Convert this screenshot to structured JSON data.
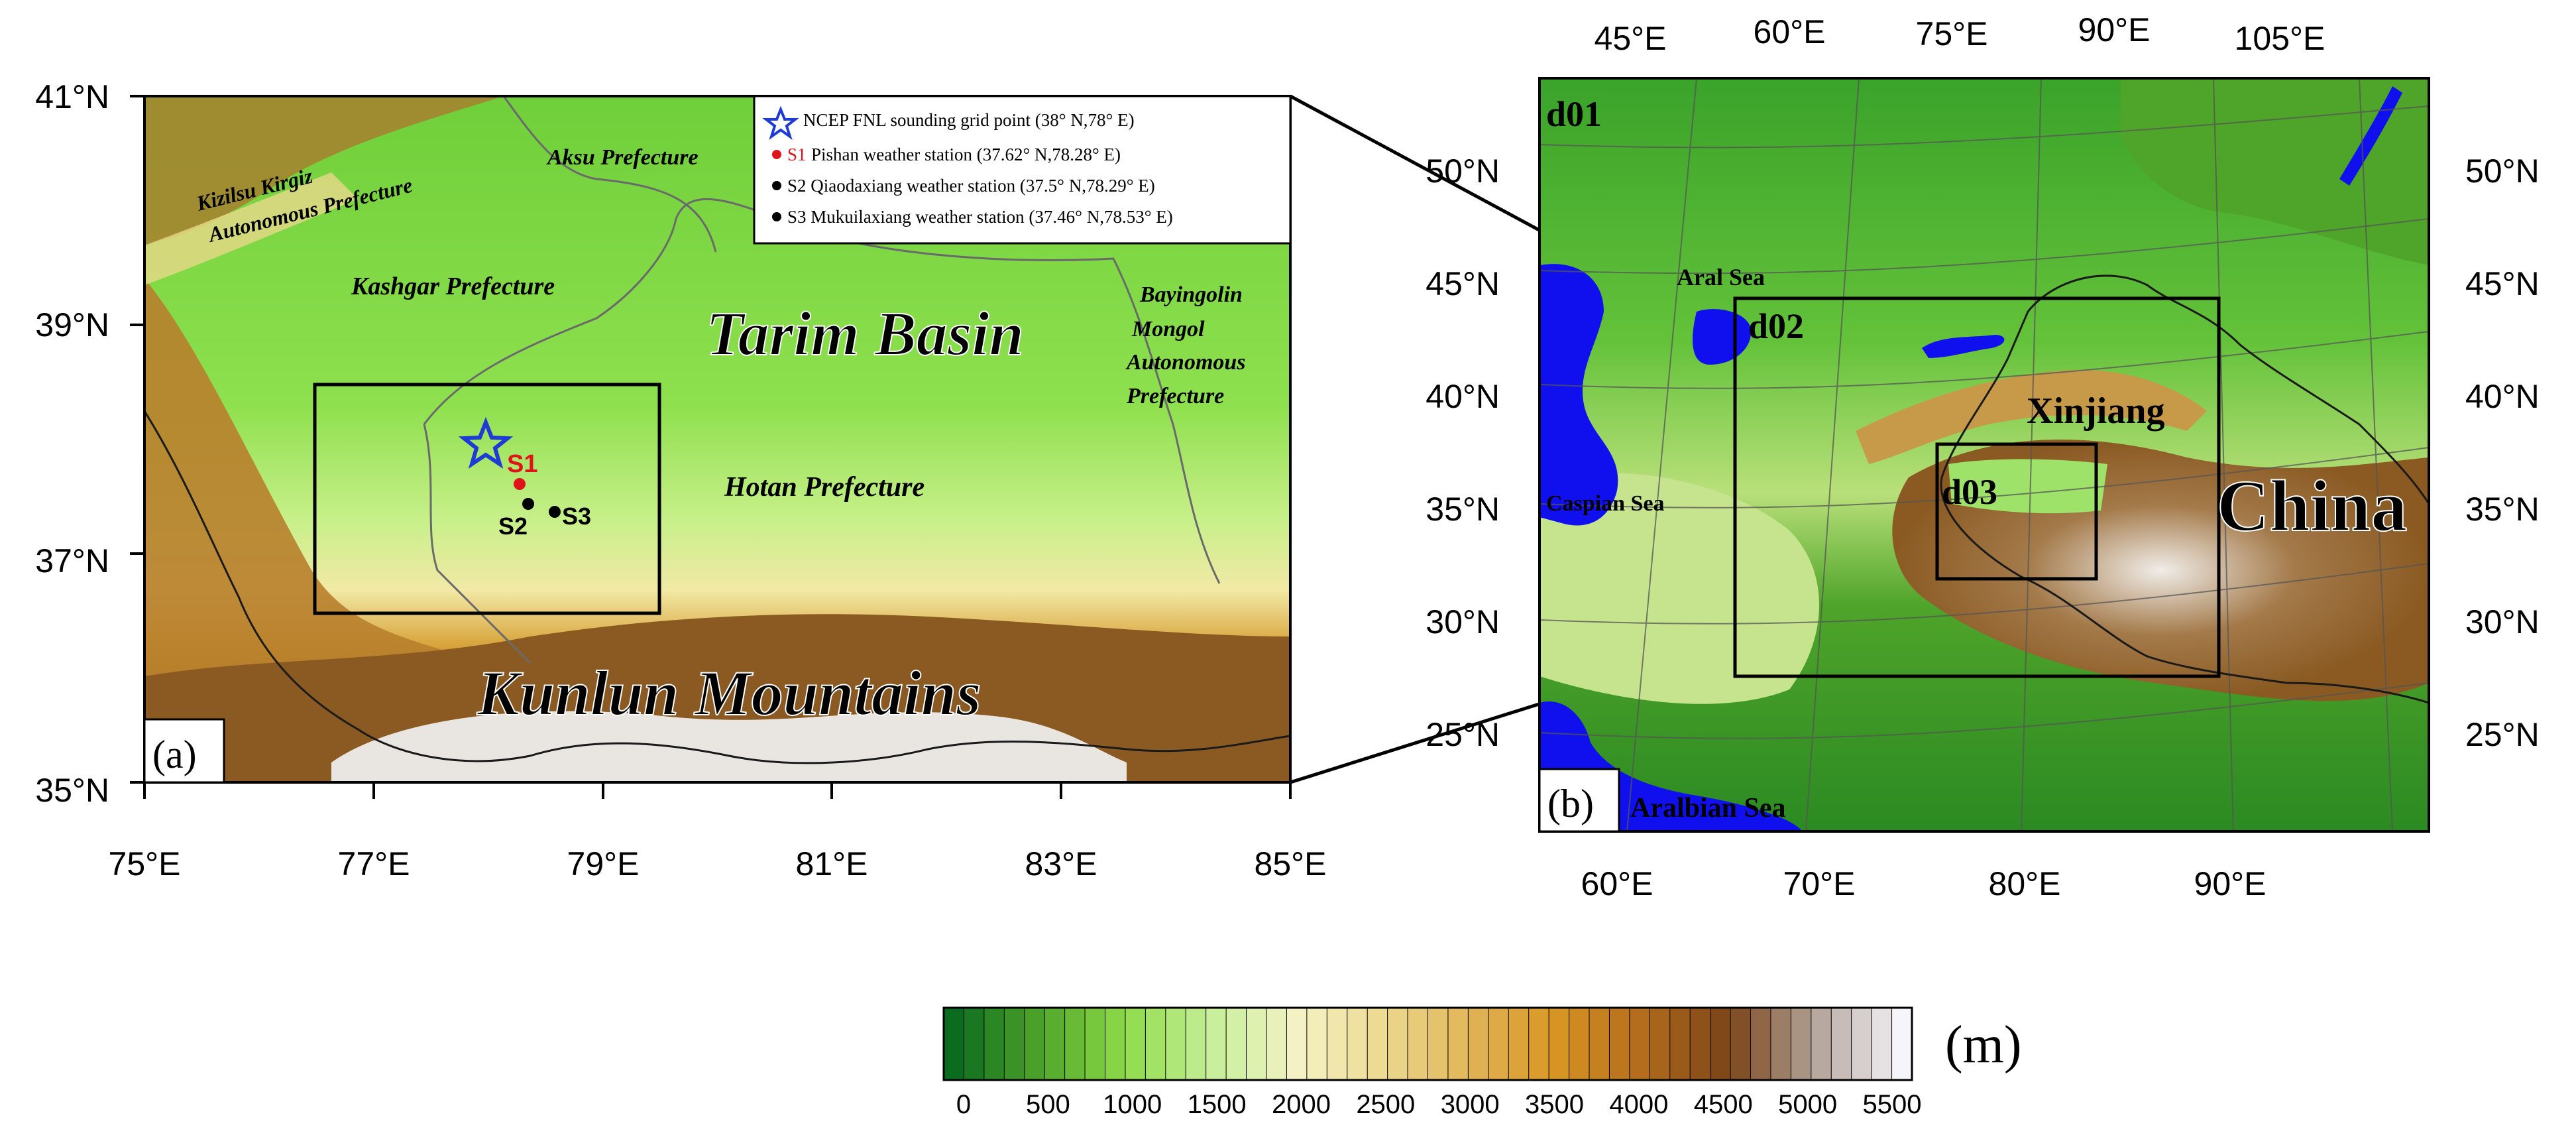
{
  "panel_a": {
    "label": "(a)",
    "lat_ticks": [
      "41°N",
      "39°N",
      "37°N",
      "35°N"
    ],
    "lon_ticks": [
      "75°E",
      "77°E",
      "79°E",
      "81°E",
      "83°E",
      "85°E"
    ],
    "region_labels": {
      "kizilsu_1": "Kizilsu Kirgiz",
      "kizilsu_2": "Autonomous Prefecture",
      "aksu": "Aksu Prefecture",
      "kashgar": "Kashgar Prefecture",
      "tarim": "Tarim Basin",
      "hotan": "Hotan Prefecture",
      "kunlun": "Kunlun Mountains",
      "bayingolin_1": "Bayingolin",
      "bayingolin_2": "Mongol",
      "bayingolin_3": "Autonomous",
      "bayingolin_4": "Prefecture"
    },
    "stations": {
      "s1": "S1",
      "s2": "S2",
      "s3": "S3"
    },
    "legend": {
      "star": "NCEP FNL sounding grid point (38° N,78° E)",
      "s1_tag": "S1",
      "s1_text": "Pishan weather station (37.62° N,78.28° E)",
      "s2": "S2 Qiaodaxiang weather station (37.5° N,78.29° E)",
      "s3": "S3 Mukuilaxiang weather station (37.46° N,78.53° E)"
    }
  },
  "panel_b": {
    "label": "(b)",
    "top_lon_ticks": [
      "45°E",
      "60°E",
      "75°E",
      "90°E",
      "105°E"
    ],
    "bottom_lon_ticks": [
      "60°E",
      "70°E",
      "80°E",
      "90°E"
    ],
    "left_lat_ticks": [
      "50°N",
      "45°N",
      "40°N",
      "35°N",
      "30°N",
      "25°N"
    ],
    "right_lat_ticks": [
      "50°N",
      "45°N",
      "40°N",
      "35°N",
      "30°N",
      "25°N"
    ],
    "domains": {
      "d01": "d01",
      "d02": "d02",
      "d03": "d03"
    },
    "place_labels": {
      "aral": "Aral Sea",
      "caspian": "Caspian Sea",
      "arabian": "Aralbian Sea",
      "xinjiang": "Xinjiang",
      "china": "China"
    }
  },
  "colorbar": {
    "unit": "(m)",
    "tick_labels": [
      "0",
      "500",
      "1000",
      "1500",
      "2000",
      "2500",
      "3000",
      "3500",
      "4000",
      "4500",
      "5000",
      "5500"
    ],
    "colors": [
      "#0b6b1f",
      "#4fa42a",
      "#8fdc4a",
      "#c7ef9a",
      "#f5f2c6",
      "#ecd98f",
      "#e1b456",
      "#d79522",
      "#b26b1c",
      "#7a4417",
      "#b3a49a",
      "#f5f5fa"
    ]
  }
}
